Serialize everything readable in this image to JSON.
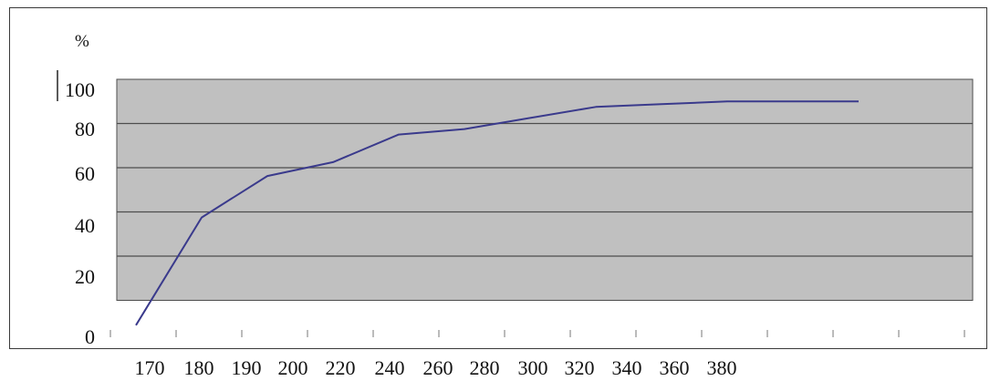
{
  "chart_data": {
    "type": "line",
    "title": "",
    "xlabel": "",
    "ylabel": "%",
    "y_ticks": [
      "100",
      "80",
      "60",
      "40",
      "20",
      "0"
    ],
    "x_tick_labels": [
      "170",
      "180",
      "190",
      "200",
      "220",
      "240",
      "260",
      "280",
      "300",
      "320",
      "340",
      "360",
      "380"
    ],
    "series": [
      {
        "values": [
          11,
          50,
          65,
          70,
          80,
          82,
          86,
          90,
          91,
          92,
          92,
          92
        ]
      }
    ],
    "x_slots": [
      0.5,
      1.5,
      2.5,
      3.5,
      4.5,
      5.5,
      6.5,
      7.5,
      8.5,
      9.5,
      10.5,
      11.5
    ],
    "ylim": [
      0,
      100
    ],
    "grid": true,
    "plot_background": "#c0c0c0",
    "line_color": "#3a3a8c",
    "grid_color": "#4d4d4d"
  }
}
